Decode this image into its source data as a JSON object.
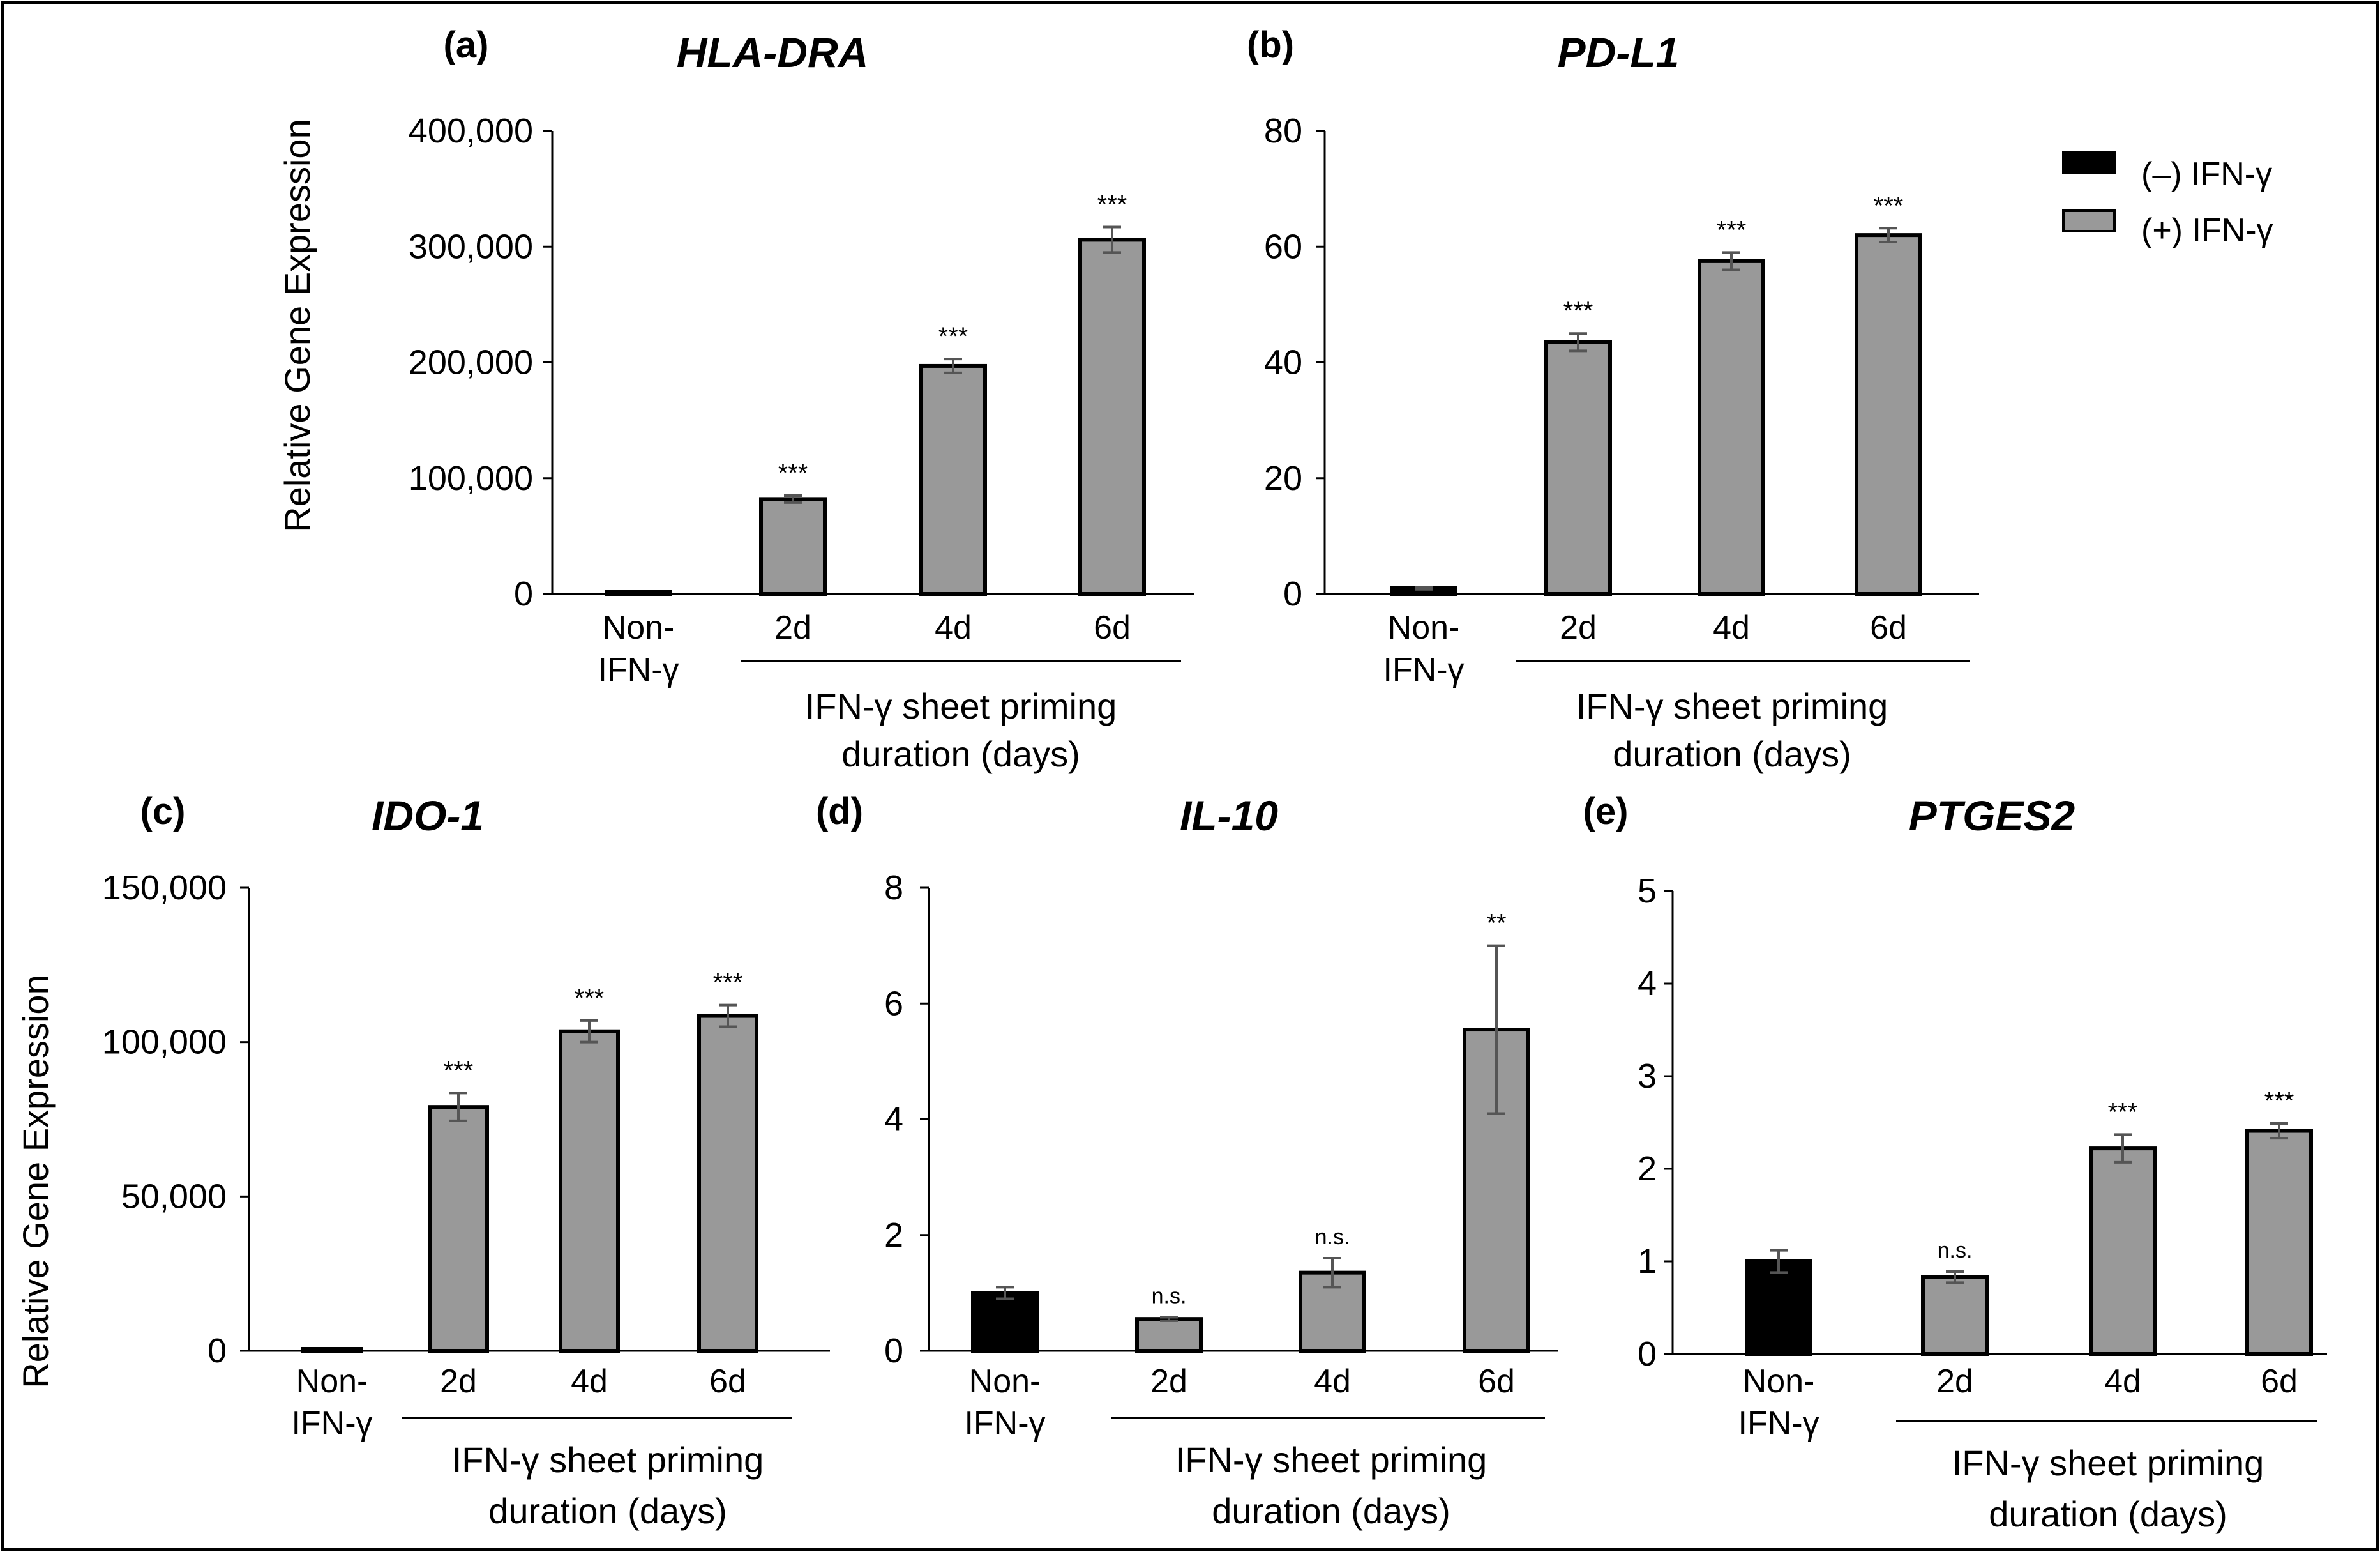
{
  "legend": {
    "items": [
      {
        "label": "(–) IFN-γ",
        "color": "#000000"
      },
      {
        "label": "(+) IFN-γ",
        "color": "#999999"
      }
    ]
  },
  "chart_data": [
    {
      "panel": "(a)",
      "title": "HLA-DRA",
      "type": "bar",
      "ylabel": "Relative Gene Expression",
      "ylim": [
        0,
        400000
      ],
      "yticks": [
        0,
        100000,
        200000,
        300000,
        400000
      ],
      "ytick_labels": [
        "0",
        "100,000",
        "200,000",
        "300,000",
        "400,000"
      ],
      "categories": [
        "Non-\nIFN-γ",
        "2d",
        "4d",
        "6d"
      ],
      "category_lines": [
        [
          "Non-",
          "IFN-γ"
        ],
        [
          "2d"
        ],
        [
          "4d"
        ],
        [
          "6d"
        ]
      ],
      "xtitle": [
        "IFN-γ sheet priming",
        "duration (days)"
      ],
      "values": [
        1,
        82000,
        197000,
        306000
      ],
      "errors": [
        0,
        3000,
        6000,
        11000
      ],
      "groups": [
        "neg",
        "pos",
        "pos",
        "pos"
      ],
      "significance": [
        "",
        "***",
        "***",
        "***"
      ]
    },
    {
      "panel": "(b)",
      "title": "PD-L1",
      "type": "bar",
      "ylabel": "",
      "ylim": [
        0,
        80
      ],
      "yticks": [
        0,
        20,
        40,
        60,
        80
      ],
      "ytick_labels": [
        "0",
        "20",
        "40",
        "60",
        "80"
      ],
      "categories": [
        "Non-\nIFN-γ",
        "2d",
        "4d",
        "6d"
      ],
      "category_lines": [
        [
          "Non-",
          "IFN-γ"
        ],
        [
          "2d"
        ],
        [
          "4d"
        ],
        [
          "6d"
        ]
      ],
      "xtitle": [
        "IFN-γ sheet priming",
        "duration (days)"
      ],
      "values": [
        1,
        43.5,
        57.5,
        62
      ],
      "errors": [
        0.2,
        1.5,
        1.5,
        1.2
      ],
      "groups": [
        "neg",
        "pos",
        "pos",
        "pos"
      ],
      "significance": [
        "",
        "***",
        "***",
        "***"
      ]
    },
    {
      "panel": "(c)",
      "title": "IDO-1",
      "type": "bar",
      "ylabel": "Relative Gene Expression",
      "ylim": [
        0,
        150000
      ],
      "yticks": [
        0,
        50000,
        100000,
        150000
      ],
      "ytick_labels": [
        "0",
        "50,000",
        "100,000",
        "150,000"
      ],
      "categories": [
        "Non-\nIFN-γ",
        "2d",
        "4d",
        "6d"
      ],
      "category_lines": [
        [
          "Non-",
          "IFN-γ"
        ],
        [
          "2d"
        ],
        [
          "4d"
        ],
        [
          "6d"
        ]
      ],
      "xtitle": [
        "IFN-γ sheet priming",
        "duration (days)"
      ],
      "values": [
        1,
        79000,
        103500,
        108500
      ],
      "errors": [
        0,
        4500,
        3500,
        3500
      ],
      "groups": [
        "neg",
        "pos",
        "pos",
        "pos"
      ],
      "significance": [
        "",
        "***",
        "***",
        "***"
      ]
    },
    {
      "panel": "(d)",
      "title": "IL-10",
      "type": "bar",
      "ylabel": "",
      "ylim": [
        0,
        8
      ],
      "yticks": [
        0,
        2,
        4,
        6,
        8
      ],
      "ytick_labels": [
        "0",
        "2",
        "4",
        "6",
        "8"
      ],
      "categories": [
        "Non-\nIFN-γ",
        "2d",
        "4d",
        "6d"
      ],
      "category_lines": [
        [
          "Non-",
          "IFN-γ"
        ],
        [
          "2d"
        ],
        [
          "4d"
        ],
        [
          "6d"
        ]
      ],
      "xtitle": [
        "IFN-γ sheet priming",
        "duration (days)"
      ],
      "values": [
        1.0,
        0.55,
        1.35,
        5.55
      ],
      "errors": [
        0.1,
        0.03,
        0.25,
        1.45
      ],
      "groups": [
        "neg",
        "pos",
        "pos",
        "pos"
      ],
      "significance": [
        "",
        "n.s.",
        "n.s.",
        "**"
      ]
    },
    {
      "panel": "(e)",
      "title": "PTGES2",
      "type": "bar",
      "ylabel": "",
      "ylim": [
        0,
        5
      ],
      "yticks": [
        0,
        1,
        2,
        3,
        4,
        5
      ],
      "ytick_labels": [
        "0",
        "1",
        "2",
        "3",
        "4",
        "5"
      ],
      "categories": [
        "Non-\nIFN-γ",
        "2d",
        "4d",
        "6d"
      ],
      "category_lines": [
        [
          "Non-",
          "IFN-γ"
        ],
        [
          "2d"
        ],
        [
          "4d"
        ],
        [
          "6d"
        ]
      ],
      "xtitle": [
        "IFN-γ sheet priming",
        "duration (days)"
      ],
      "values": [
        1.0,
        0.83,
        2.22,
        2.41
      ],
      "errors": [
        0.12,
        0.06,
        0.15,
        0.08
      ],
      "groups": [
        "neg",
        "pos",
        "pos",
        "pos"
      ],
      "significance": [
        "",
        "n.s.",
        "***",
        "***"
      ]
    }
  ]
}
